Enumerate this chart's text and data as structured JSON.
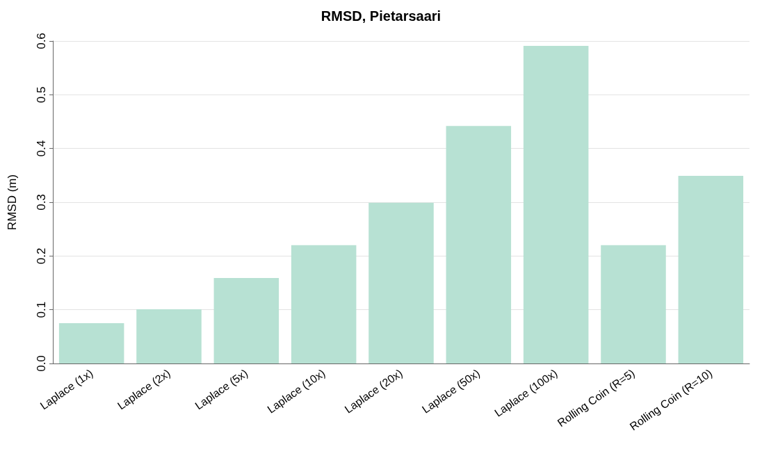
{
  "chart_data": {
    "type": "bar",
    "title": "RMSD, Pietarsaari",
    "ylabel": "RMSD (m)",
    "categories": [
      "Laplace (1x)",
      "Laplace (2x)",
      "Laplace (5x)",
      "Laplace (10x)",
      "Laplace (20x)",
      "Laplace (50x)",
      "Laplace (100x)",
      "Rolling Coin (R=5)",
      "Rolling Coin (R=10)"
    ],
    "values": [
      0.075,
      0.101,
      0.159,
      0.22,
      0.299,
      0.442,
      0.591,
      0.22,
      0.349
    ],
    "color": "#b7e1d3",
    "ylim": [
      0,
      0.6
    ],
    "yticks": [
      "0.0",
      0.1,
      0.2,
      0.3,
      0.4,
      0.5,
      0.6
    ],
    "grid": "y"
  }
}
